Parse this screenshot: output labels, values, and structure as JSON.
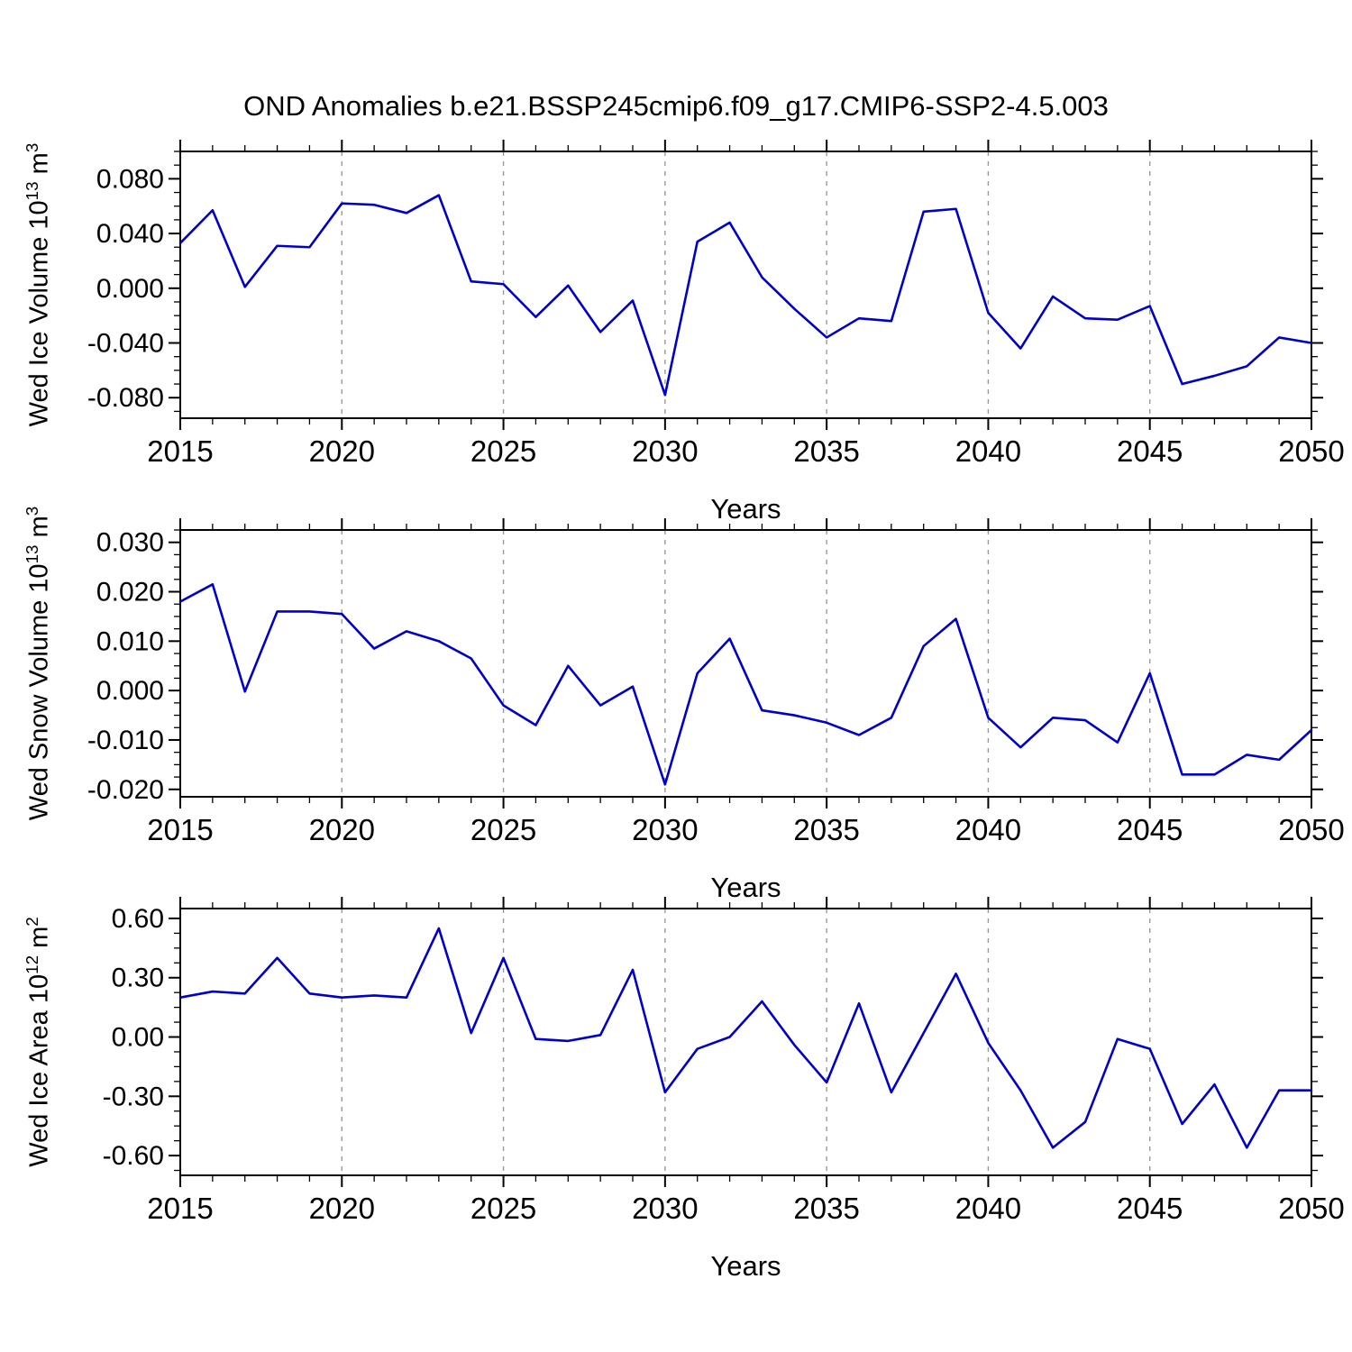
{
  "title": "OND Anomalies b.e21.BSSP245cmip6.f09_g17.CMIP6-SSP2-4.5.003",
  "colors": {
    "line": "#0000CC",
    "grid": "#999999",
    "axis": "#000000"
  },
  "chart_data": [
    {
      "type": "line",
      "name": "wed-ice-volume",
      "ylabel": {
        "prefix": "Wed Ice Volume 10",
        "exp": "13",
        "unit": " m",
        "unit_exp": "3"
      },
      "xlabel": "Years",
      "x_start": 2015,
      "x_end": 2050,
      "xticks": [
        2015,
        2020,
        2025,
        2030,
        2035,
        2040,
        2045,
        2050
      ],
      "grid_x": [
        2020,
        2025,
        2030,
        2035,
        2040,
        2045
      ],
      "ylim": [
        -0.095,
        0.1
      ],
      "yticks": [
        -0.08,
        -0.04,
        0.0,
        0.04,
        0.08
      ],
      "ytick_labels": [
        "-0.080",
        "-0.040",
        "0.000",
        "0.040",
        "0.080"
      ],
      "years": [
        2015,
        2016,
        2017,
        2018,
        2019,
        2020,
        2021,
        2022,
        2023,
        2024,
        2025,
        2026,
        2027,
        2028,
        2029,
        2030,
        2031,
        2032,
        2033,
        2034,
        2035,
        2036,
        2037,
        2038,
        2039,
        2040,
        2041,
        2042,
        2043,
        2044,
        2045,
        2046,
        2047,
        2048,
        2049,
        2050
      ],
      "values": [
        0.033,
        0.057,
        0.001,
        0.031,
        0.03,
        0.062,
        0.061,
        0.055,
        0.068,
        0.005,
        0.003,
        -0.021,
        0.002,
        -0.032,
        -0.009,
        -0.078,
        0.034,
        0.048,
        0.008,
        -0.015,
        -0.036,
        -0.022,
        -0.024,
        0.056,
        0.058,
        -0.018,
        -0.044,
        -0.006,
        -0.022,
        -0.023,
        -0.013,
        -0.07,
        -0.064,
        -0.057,
        -0.036,
        -0.04
      ]
    },
    {
      "type": "line",
      "name": "wed-snow-volume",
      "ylabel": {
        "prefix": "Wed Snow Volume 10",
        "exp": "13",
        "unit": " m",
        "unit_exp": "3"
      },
      "xlabel": "Years",
      "x_start": 2015,
      "x_end": 2050,
      "xticks": [
        2015,
        2020,
        2025,
        2030,
        2035,
        2040,
        2045,
        2050
      ],
      "grid_x": [
        2020,
        2025,
        2030,
        2035,
        2040,
        2045
      ],
      "ylim": [
        -0.0215,
        0.0325
      ],
      "yticks": [
        -0.02,
        -0.01,
        0.0,
        0.01,
        0.02,
        0.03
      ],
      "ytick_labels": [
        "-0.020",
        "-0.010",
        "0.000",
        "0.010",
        "0.020",
        "0.030"
      ],
      "years": [
        2015,
        2016,
        2017,
        2018,
        2019,
        2020,
        2021,
        2022,
        2023,
        2024,
        2025,
        2026,
        2027,
        2028,
        2029,
        2030,
        2031,
        2032,
        2033,
        2034,
        2035,
        2036,
        2037,
        2038,
        2039,
        2040,
        2041,
        2042,
        2043,
        2044,
        2045,
        2046,
        2047,
        2048,
        2049,
        2050
      ],
      "values": [
        0.018,
        0.0215,
        -0.0002,
        0.016,
        0.016,
        0.0155,
        0.0085,
        0.012,
        0.01,
        0.0065,
        -0.003,
        -0.007,
        0.005,
        -0.003,
        0.0008,
        -0.019,
        0.0035,
        0.0105,
        -0.004,
        -0.005,
        -0.0065,
        -0.009,
        -0.0055,
        0.009,
        0.0145,
        -0.0055,
        -0.0115,
        -0.0055,
        -0.006,
        -0.0105,
        0.0035,
        -0.017,
        -0.017,
        -0.013,
        -0.014,
        -0.008
      ]
    },
    {
      "type": "line",
      "name": "wed-ice-area",
      "ylabel": {
        "prefix": "Wed Ice Area 10",
        "exp": "12",
        "unit": " m",
        "unit_exp": "2"
      },
      "xlabel": "Years",
      "x_start": 2015,
      "x_end": 2050,
      "xticks": [
        2015,
        2020,
        2025,
        2030,
        2035,
        2040,
        2045,
        2050
      ],
      "grid_x": [
        2020,
        2025,
        2030,
        2035,
        2040,
        2045
      ],
      "ylim": [
        -0.7,
        0.65
      ],
      "yticks": [
        -0.6,
        -0.3,
        0.0,
        0.3,
        0.6
      ],
      "ytick_labels": [
        "-0.60",
        "-0.30",
        "0.00",
        "0.30",
        "0.60"
      ],
      "years": [
        2015,
        2016,
        2017,
        2018,
        2019,
        2020,
        2021,
        2022,
        2023,
        2024,
        2025,
        2026,
        2027,
        2028,
        2029,
        2030,
        2031,
        2032,
        2033,
        2034,
        2035,
        2036,
        2037,
        2038,
        2039,
        2040,
        2041,
        2042,
        2043,
        2044,
        2045,
        2046,
        2047,
        2048,
        2049,
        2050
      ],
      "values": [
        0.2,
        0.23,
        0.22,
        0.4,
        0.22,
        0.2,
        0.21,
        0.2,
        0.55,
        0.02,
        0.4,
        -0.01,
        -0.02,
        0.01,
        0.34,
        -0.28,
        -0.06,
        0.0,
        0.18,
        -0.04,
        -0.23,
        0.17,
        -0.28,
        0.02,
        0.32,
        -0.03,
        -0.27,
        -0.56,
        -0.43,
        -0.01,
        -0.06,
        -0.44,
        -0.24,
        -0.56,
        -0.27,
        -0.27
      ]
    }
  ]
}
